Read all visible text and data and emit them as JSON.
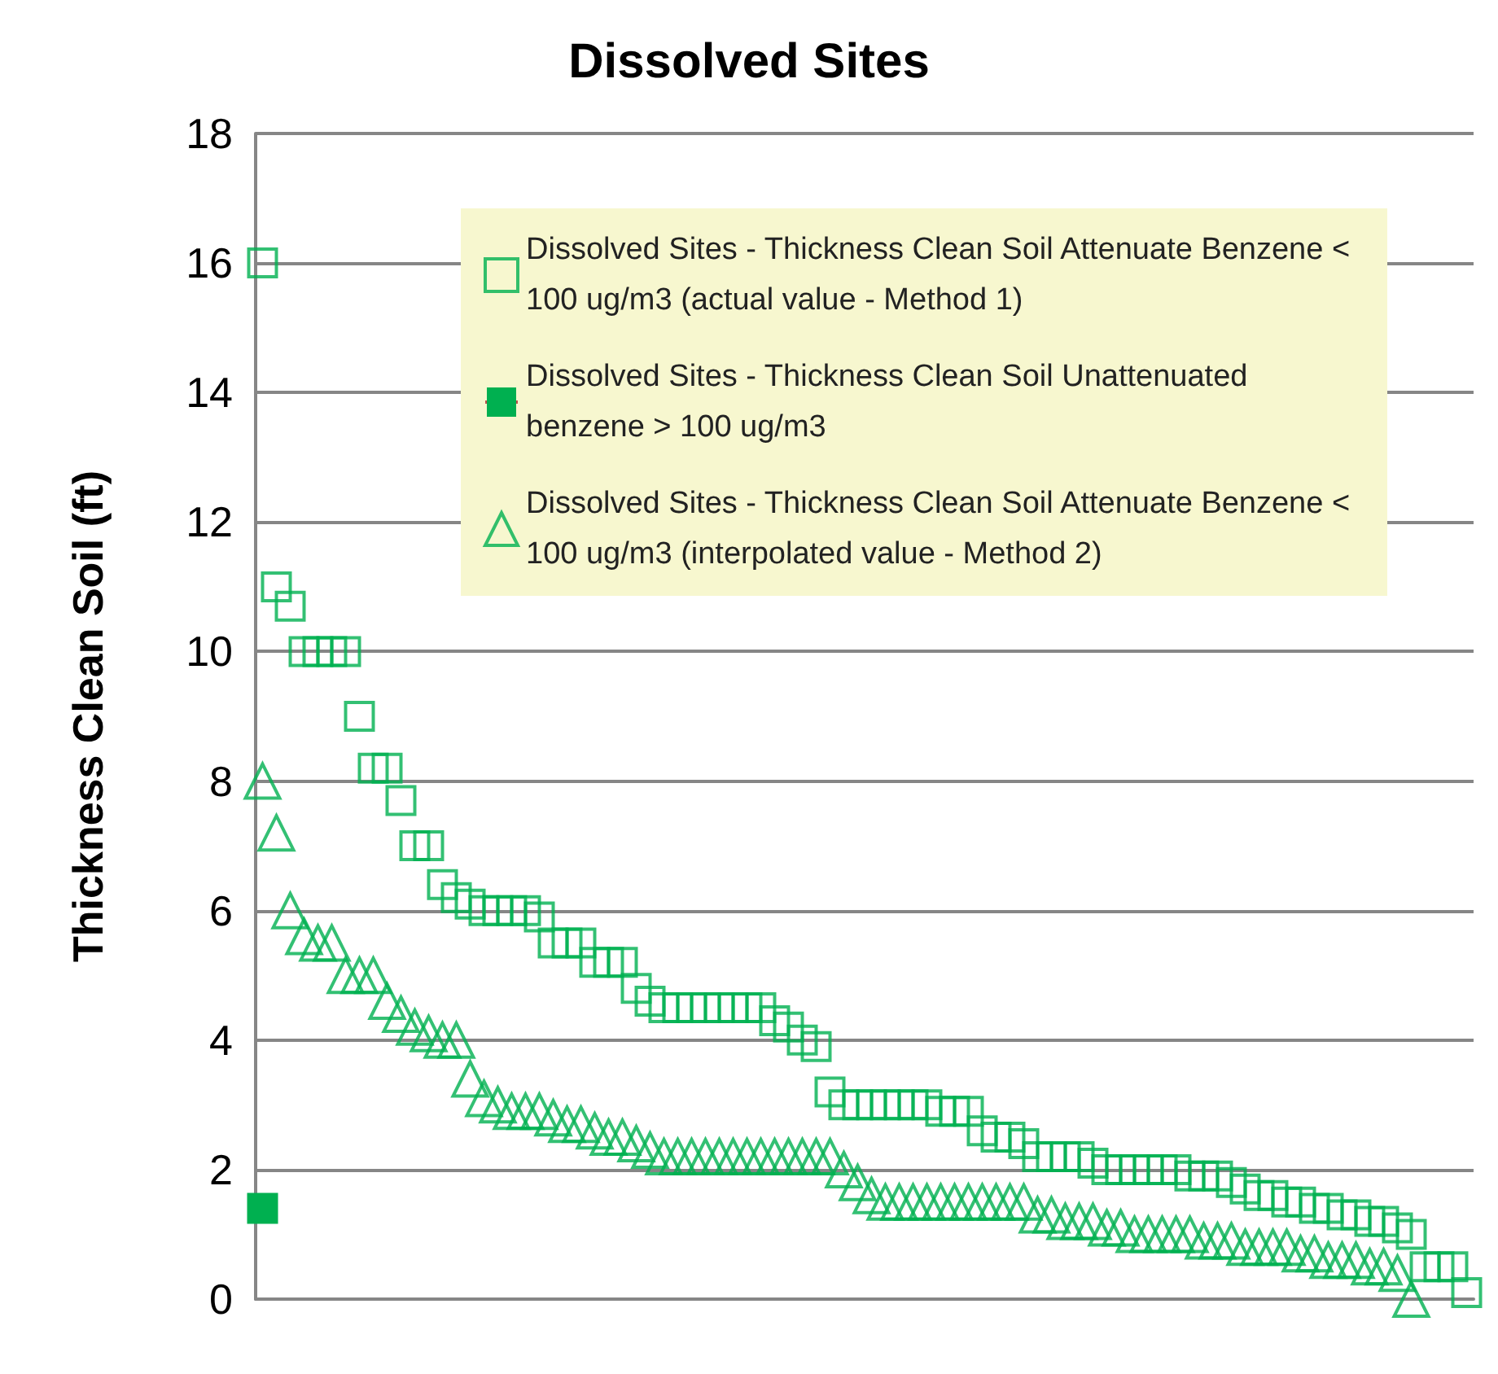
{
  "chart_data": {
    "type": "scatter",
    "title": "Dissolved Sites",
    "ylabel": "Thickness Clean Soil (ft)",
    "categories": [
      null,
      null,
      null,
      null,
      null,
      null,
      null,
      null,
      null,
      null,
      null,
      null,
      null,
      null,
      null,
      null,
      null,
      null,
      null,
      null,
      null,
      null,
      null,
      null,
      null,
      null,
      null,
      null,
      null,
      null,
      null,
      null,
      null,
      null,
      null,
      null,
      null,
      null,
      null,
      null,
      null,
      null,
      null,
      null,
      null,
      null,
      null,
      null,
      null,
      null,
      null,
      null,
      null,
      null,
      null,
      null,
      null,
      null,
      null,
      null,
      null,
      null,
      null,
      null,
      null,
      null,
      null,
      null,
      null,
      null,
      null,
      null,
      null,
      null,
      null,
      null,
      null,
      null,
      null,
      null,
      null,
      null,
      null,
      null,
      null,
      null,
      null,
      null
    ],
    "series": [
      {
        "name": "Dissolved Sites - Thickness Clean Soil Attenuate Benzene < 100 ug/m3 (actual value - Method 1)",
        "marker": "square",
        "color": "#00b050",
        "values": [
          16,
          11,
          10.7,
          10,
          10,
          10,
          10,
          9,
          8.2,
          8.2,
          7.7,
          7,
          7,
          6.4,
          6.2,
          6.1,
          6,
          6,
          6,
          6,
          5.9,
          5.5,
          5.5,
          5.5,
          5.2,
          5.2,
          5.2,
          4.8,
          4.6,
          4.5,
          4.5,
          4.5,
          4.5,
          4.5,
          4.5,
          4.5,
          4.5,
          4.3,
          4.2,
          4.0,
          3.9,
          3.2,
          3.0,
          3.0,
          3.0,
          3.0,
          3.0,
          3.0,
          3.0,
          2.9,
          2.9,
          2.9,
          2.6,
          2.5,
          2.5,
          2.4,
          2.2,
          2.2,
          2.2,
          2.2,
          2.1,
          2.0,
          2.0,
          2.0,
          2.0,
          2.0,
          2.0,
          1.9,
          1.9,
          1.9,
          1.8,
          1.7,
          1.6,
          1.6,
          1.5,
          1.5,
          1.4,
          1.4,
          1.3,
          1.3,
          1.2,
          1.2,
          1.1,
          1.0,
          0.5,
          0.5,
          0.5,
          0.1
        ]
      },
      {
        "name": "Dissolved Sites - Thickness Clean Soil Unattenuated benzene > 100 ug/m3",
        "type": "line",
        "marker": "square",
        "color": "#00b050",
        "values": [
          1.4,
          null,
          null,
          null,
          null,
          null,
          null,
          null,
          null,
          null,
          null,
          null,
          null,
          null,
          null,
          null,
          null,
          null,
          null,
          null,
          null,
          null,
          null,
          null,
          null,
          null,
          null,
          null,
          null,
          null,
          null,
          null,
          null,
          null,
          null,
          null,
          null,
          null,
          null,
          null,
          null,
          null,
          null,
          null,
          null,
          null,
          null,
          null,
          null,
          null,
          null,
          null,
          null,
          null,
          null,
          null,
          null,
          null,
          null,
          null,
          null,
          null,
          null,
          null,
          null,
          null,
          null,
          null,
          null,
          null,
          null,
          null,
          null,
          null,
          null,
          null,
          null,
          null,
          null,
          null,
          null,
          null,
          null,
          null,
          null,
          null,
          null,
          null
        ]
      },
      {
        "name": "Dissolved Sites - Thickness Clean Soil Attenuate Benzene < 100 ug/m3 (interpolated value - Method 2)",
        "marker": "triangle",
        "color": "#00b050",
        "values": [
          8,
          7.2,
          6,
          5.6,
          5.5,
          5.5,
          5,
          5,
          5,
          4.6,
          4.4,
          4.2,
          4.1,
          4,
          4,
          3.4,
          3.1,
          3,
          2.9,
          2.9,
          2.9,
          2.8,
          2.7,
          2.7,
          2.6,
          2.5,
          2.5,
          2.4,
          2.3,
          2.2,
          2.2,
          2.2,
          2.2,
          2.2,
          2.2,
          2.2,
          2.2,
          2.2,
          2.2,
          2.2,
          2.2,
          2.2,
          2.0,
          1.8,
          1.6,
          1.5,
          1.5,
          1.5,
          1.5,
          1.5,
          1.5,
          1.5,
          1.5,
          1.5,
          1.5,
          1.5,
          1.3,
          1.3,
          1.2,
          1.2,
          1.2,
          1.1,
          1.1,
          1.0,
          1.0,
          1.0,
          1.0,
          1.0,
          0.9,
          0.9,
          0.9,
          0.8,
          0.8,
          0.8,
          0.8,
          0.7,
          0.7,
          0.6,
          0.6,
          0.6,
          0.5,
          0.5,
          0.4,
          0,
          null,
          null,
          null,
          null
        ]
      }
    ],
    "ylim": [
      0,
      18
    ],
    "yticks": [
      0,
      2,
      4,
      6,
      8,
      10,
      12,
      14,
      16,
      18
    ],
    "grid": "y",
    "legend": "top right",
    "tick_labels": "y"
  }
}
